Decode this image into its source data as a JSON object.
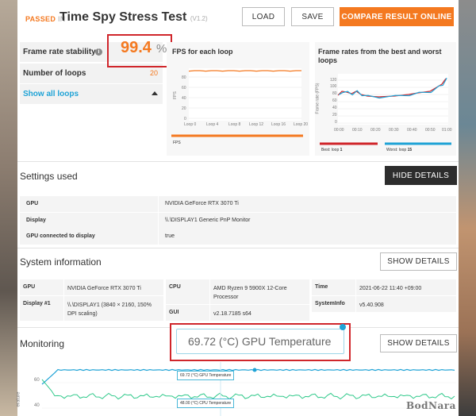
{
  "header": {
    "passed": "PASSED",
    "in": "IN",
    "title": "Time Spy Stress Test",
    "version": "(V1.2)",
    "load_label": "LOAD",
    "save_label": "SAVE",
    "compare_label": "COMPARE RESULT ONLINE"
  },
  "stats": {
    "stability_label": "Frame rate stability",
    "stability_value": "99.4",
    "stability_unit": "%",
    "loops_label": "Number of loops",
    "loops_value": "20",
    "show_loops_label": "Show all loops"
  },
  "fps_chart": {
    "title": "FPS for each loop",
    "legend": "FPS",
    "ylabel": "FPS",
    "xticks": [
      "Loop 0",
      "Loop 4",
      "Loop 8",
      "Loop 12",
      "Loop 16",
      "Loop 20"
    ],
    "yticks": [
      "80",
      "60",
      "40",
      "20",
      "0"
    ]
  },
  "best_worst_chart": {
    "title": "Frame rates from the best and worst loops",
    "ylabel": "Frame rate (FPS)",
    "xticks": [
      "00:00",
      "00:10",
      "00:20",
      "00:30",
      "00:40",
      "00:50",
      "01:00"
    ],
    "yticks": [
      "120",
      "100",
      "80",
      "60",
      "40",
      "20",
      "0"
    ],
    "best_label": "Best: loop",
    "best_loop": "1",
    "worst_label": "Worst: loop",
    "worst_loop": "15",
    "best_color": "#d0262b",
    "worst_color": "#1fa3d6"
  },
  "settings": {
    "title": "Settings used",
    "hide_details_label": "HIDE DETAILS",
    "rows": [
      {
        "key": "GPU",
        "value": "NVIDIA GeForce RTX 3070 Ti"
      },
      {
        "key": "Display",
        "value": "\\\\.\\DISPLAY1 Generic PnP Monitor"
      },
      {
        "key": "GPU connected to display",
        "value": "true"
      }
    ]
  },
  "sysinfo": {
    "title": "System information",
    "show_details_label": "SHOW DETAILS",
    "gpu_label": "GPU",
    "gpu_value": "NVIDIA GeForce RTX 3070 Ti",
    "display_label": "Display #1",
    "display_value": "\\\\.\\DISPLAY1 (3840 × 2160, 150% DPI scaling)",
    "cpu_label": "CPU",
    "cpu_value": "AMD Ryzen 9 5900X 12-Core Processor",
    "gui_label": "GUI",
    "gui_value": "v2.18.7185 s64",
    "time_label": "Time",
    "time_value": "2021-06-22 11:40 +09:00",
    "sysinfo_label": "SystemInfo",
    "sysinfo_value": "v5.40.908"
  },
  "monitoring": {
    "title": "Monitoring",
    "show_details_label": "SHOW DETAILS",
    "zoom_tooltip": "69.72 (°C) GPU Temperature",
    "gpu_tooltip": "69.72 (°C) GPU Temperature",
    "cpu_tooltip": "48.00 (°C) CPU Temperature",
    "ylabel": "erature",
    "yticks": [
      "60",
      "40"
    ],
    "gpu_color": "#1fa3d6",
    "cpu_color": "#2fc98a"
  },
  "watermark": "BodNara"
}
